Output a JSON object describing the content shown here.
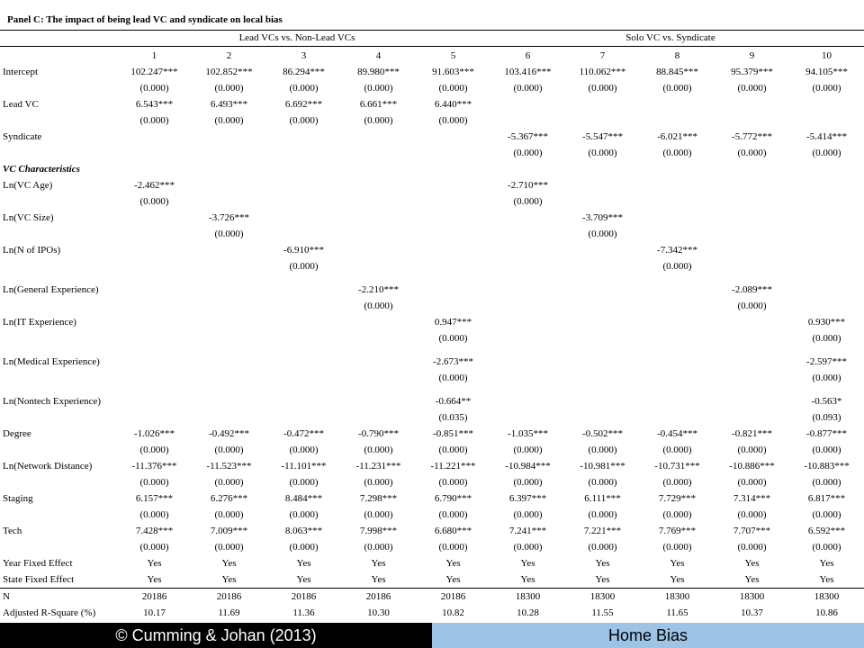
{
  "panel_title": "Panel C: The impact of being lead VC and syndicate on local bias",
  "group_headers": [
    "Lead VCs vs. Non-Lead VCs",
    "Solo VC vs. Syndicate"
  ],
  "column_numbers": [
    "1",
    "2",
    "3",
    "4",
    "5",
    "6",
    "7",
    "8",
    "9",
    "10"
  ],
  "rows": [
    {
      "label": "Intercept",
      "values": [
        "102.247***",
        "102.852***",
        "86.294***",
        "89.980***",
        "91.603***",
        "103.416***",
        "110.062***",
        "88.845***",
        "95.379***",
        "94.105***"
      ]
    },
    {
      "label": "",
      "values": [
        "(0.000)",
        "(0.000)",
        "(0.000)",
        "(0.000)",
        "(0.000)",
        "(0.000)",
        "(0.000)",
        "(0.000)",
        "(0.000)",
        "(0.000)"
      ]
    },
    {
      "label": "Lead VC",
      "values": [
        "6.543***",
        "6.493***",
        "6.692***",
        "6.661***",
        "6.440***",
        "",
        "",
        "",
        "",
        ""
      ]
    },
    {
      "label": "",
      "values": [
        "(0.000)",
        "(0.000)",
        "(0.000)",
        "(0.000)",
        "(0.000)",
        "",
        "",
        "",
        "",
        ""
      ]
    },
    {
      "label": "Syndicate",
      "values": [
        "",
        "",
        "",
        "",
        "",
        "-5.367***",
        "-5.547***",
        "-6.021***",
        "-5.772***",
        "-5.414***"
      ]
    },
    {
      "label": "",
      "values": [
        "",
        "",
        "",
        "",
        "",
        "(0.000)",
        "(0.000)",
        "(0.000)",
        "(0.000)",
        "(0.000)"
      ]
    },
    {
      "label": "VC Characteristics",
      "section": true,
      "values": [
        "",
        "",
        "",
        "",
        "",
        "",
        "",
        "",
        "",
        ""
      ]
    },
    {
      "label": "Ln(VC Age)",
      "values": [
        "-2.462***",
        "",
        "",
        "",
        "",
        "-2.710***",
        "",
        "",
        "",
        ""
      ]
    },
    {
      "label": "",
      "values": [
        "(0.000)",
        "",
        "",
        "",
        "",
        "(0.000)",
        "",
        "",
        "",
        ""
      ]
    },
    {
      "label": "Ln(VC Size)",
      "values": [
        "",
        "-3.726***",
        "",
        "",
        "",
        "",
        "-3.709***",
        "",
        "",
        ""
      ]
    },
    {
      "label": "",
      "values": [
        "",
        "(0.000)",
        "",
        "",
        "",
        "",
        "(0.000)",
        "",
        "",
        ""
      ]
    },
    {
      "label": "Ln(N of IPOs)",
      "values": [
        "",
        "",
        "-6.910***",
        "",
        "",
        "",
        "",
        "-7.342***",
        "",
        ""
      ]
    },
    {
      "label": "",
      "values": [
        "",
        "",
        "(0.000)",
        "",
        "",
        "",
        "",
        "(0.000)",
        "",
        ""
      ]
    },
    {
      "label": "",
      "gap": true,
      "values": [
        "",
        "",
        "",
        "",
        "",
        "",
        "",
        "",
        "",
        ""
      ]
    },
    {
      "label": "Ln(General Experience)",
      "values": [
        "",
        "",
        "",
        "-2.210***",
        "",
        "",
        "",
        "",
        "-2.089***",
        ""
      ]
    },
    {
      "label": "",
      "values": [
        "",
        "",
        "",
        "(0.000)",
        "",
        "",
        "",
        "",
        "(0.000)",
        ""
      ]
    },
    {
      "label": "Ln(IT Experience)",
      "values": [
        "",
        "",
        "",
        "",
        "0.947***",
        "",
        "",
        "",
        "",
        "0.930***"
      ]
    },
    {
      "label": "",
      "values": [
        "",
        "",
        "",
        "",
        "(0.000)",
        "",
        "",
        "",
        "",
        "(0.000)"
      ]
    },
    {
      "label": "",
      "gap": true,
      "values": [
        "",
        "",
        "",
        "",
        "",
        "",
        "",
        "",
        "",
        ""
      ]
    },
    {
      "label": "Ln(Medical Experience)",
      "values": [
        "",
        "",
        "",
        "",
        "-2.673***",
        "",
        "",
        "",
        "",
        "-2.597***"
      ]
    },
    {
      "label": "",
      "values": [
        "",
        "",
        "",
        "",
        "(0.000)",
        "",
        "",
        "",
        "",
        "(0.000)"
      ]
    },
    {
      "label": "",
      "gap": true,
      "values": [
        "",
        "",
        "",
        "",
        "",
        "",
        "",
        "",
        "",
        ""
      ]
    },
    {
      "label": "Ln(Nontech Experience)",
      "values": [
        "",
        "",
        "",
        "",
        "-0.664**",
        "",
        "",
        "",
        "",
        "-0.563*"
      ]
    },
    {
      "label": "",
      "values": [
        "",
        "",
        "",
        "",
        "(0.035)",
        "",
        "",
        "",
        "",
        "(0.093)"
      ]
    },
    {
      "label": "Degree",
      "values": [
        "-1.026***",
        "-0.492***",
        "-0.472***",
        "-0.790***",
        "-0.851***",
        "-1.035***",
        "-0.502***",
        "-0.454***",
        "-0.821***",
        "-0.877***"
      ]
    },
    {
      "label": "",
      "values": [
        "(0.000)",
        "(0.000)",
        "(0.000)",
        "(0.000)",
        "(0.000)",
        "(0.000)",
        "(0.000)",
        "(0.000)",
        "(0.000)",
        "(0.000)"
      ]
    },
    {
      "label": "Ln(Network Distance)",
      "values": [
        "-11.376***",
        "-11.523***",
        "-11.101***",
        "-11.231***",
        "-11.221***",
        "-10.984***",
        "-10.981***",
        "-10.731***",
        "-10.886***",
        "-10.883***"
      ]
    },
    {
      "label": "",
      "values": [
        "(0.000)",
        "(0.000)",
        "(0.000)",
        "(0.000)",
        "(0.000)",
        "(0.000)",
        "(0.000)",
        "(0.000)",
        "(0.000)",
        "(0.000)"
      ]
    },
    {
      "label": "Staging",
      "values": [
        "6.157***",
        "6.276***",
        "8.484***",
        "7.298***",
        "6.790***",
        "6.397***",
        "6.111***",
        "7.729***",
        "7.314***",
        "6.817***"
      ]
    },
    {
      "label": "",
      "values": [
        "(0.000)",
        "(0.000)",
        "(0.000)",
        "(0.000)",
        "(0.000)",
        "(0.000)",
        "(0.000)",
        "(0.000)",
        "(0.000)",
        "(0.000)"
      ]
    },
    {
      "label": "Tech",
      "values": [
        "7.428***",
        "7.009***",
        "8.063***",
        "7.998***",
        "6.680***",
        "7.241***",
        "7.221***",
        "7.769***",
        "7.707***",
        "6.592***"
      ]
    },
    {
      "label": "",
      "values": [
        "(0.000)",
        "(0.000)",
        "(0.000)",
        "(0.000)",
        "(0.000)",
        "(0.000)",
        "(0.000)",
        "(0.000)",
        "(0.000)",
        "(0.000)"
      ]
    },
    {
      "label": "Year Fixed Effect",
      "values": [
        "Yes",
        "Yes",
        "Yes",
        "Yes",
        "Yes",
        "Yes",
        "Yes",
        "Yes",
        "Yes",
        "Yes"
      ]
    },
    {
      "label": "State Fixed Effect",
      "values": [
        "Yes",
        "Yes",
        "Yes",
        "Yes",
        "Yes",
        "Yes",
        "Yes",
        "Yes",
        "Yes",
        "Yes"
      ]
    },
    {
      "label": "N",
      "rule_top": true,
      "values": [
        "20186",
        "20186",
        "20186",
        "20186",
        "20186",
        "18300",
        "18300",
        "18300",
        "18300",
        "18300"
      ]
    },
    {
      "label": "Adjusted R-Square (%)",
      "values": [
        "10.17",
        "11.69",
        "11.36",
        "10.30",
        "10.82",
        "10.28",
        "11.55",
        "11.65",
        "10.37",
        "10.86"
      ]
    }
  ],
  "footer": {
    "copyright": "© Cumming & Johan (2013)",
    "topic": "Home Bias",
    "left_bg": "#000000",
    "right_bg": "#9dc3e6"
  }
}
